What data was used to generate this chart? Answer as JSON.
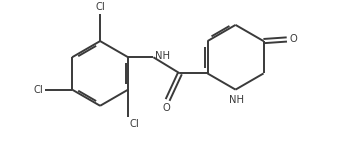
{
  "bg_color": "#ffffff",
  "line_color": "#3a3a3a",
  "text_color": "#3a3a3a",
  "lw": 1.4,
  "font_size": 7.2,
  "figsize": [
    3.62,
    1.55
  ],
  "dpi": 100,
  "xlim": [
    -0.5,
    9.5
  ],
  "ylim": [
    -0.3,
    4.3
  ]
}
